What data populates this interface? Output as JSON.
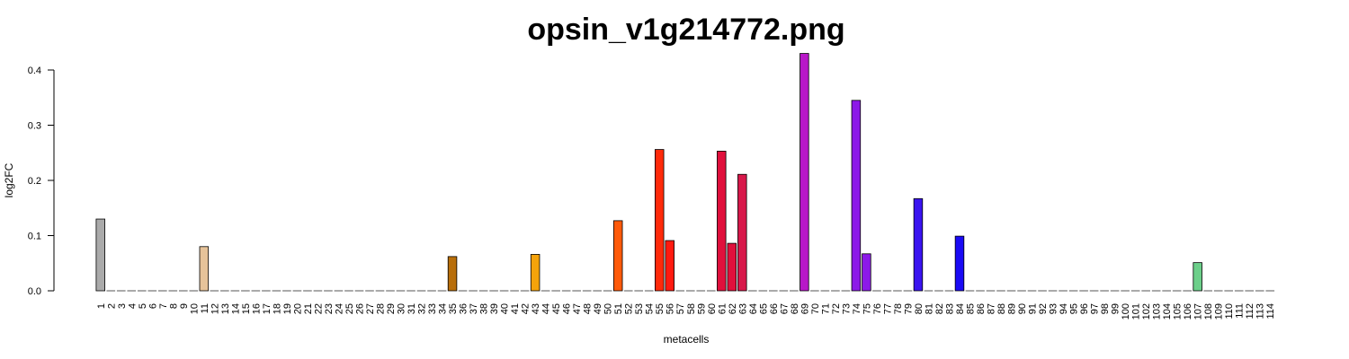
{
  "chart_data": {
    "type": "bar",
    "title": "opsin_v1g214772.png",
    "xlabel": "metacells",
    "ylabel": "log2FC",
    "ylim": [
      0,
      0.43
    ],
    "yticks": [
      "0.0",
      "0.1",
      "0.2",
      "0.3",
      "0.4"
    ],
    "ytick_values": [
      0,
      0.1,
      0.2,
      0.3,
      0.4
    ],
    "categories": [
      "1",
      "2",
      "3",
      "4",
      "5",
      "6",
      "7",
      "8",
      "9",
      "10",
      "11",
      "12",
      "13",
      "14",
      "15",
      "16",
      "17",
      "18",
      "19",
      "20",
      "21",
      "22",
      "23",
      "24",
      "25",
      "26",
      "27",
      "28",
      "29",
      "30",
      "31",
      "32",
      "33",
      "34",
      "35",
      "36",
      "37",
      "38",
      "39",
      "40",
      "41",
      "42",
      "43",
      "44",
      "45",
      "46",
      "47",
      "48",
      "49",
      "50",
      "51",
      "52",
      "53",
      "54",
      "55",
      "56",
      "57",
      "58",
      "59",
      "60",
      "61",
      "62",
      "63",
      "64",
      "65",
      "66",
      "67",
      "68",
      "69",
      "70",
      "71",
      "72",
      "73",
      "74",
      "75",
      "76",
      "77",
      "78",
      "79",
      "80",
      "81",
      "82",
      "83",
      "84",
      "85",
      "86",
      "87",
      "88",
      "89",
      "90",
      "91",
      "92",
      "93",
      "94",
      "95",
      "96",
      "97",
      "98",
      "99",
      "100",
      "101",
      "102",
      "103",
      "104",
      "105",
      "106",
      "107",
      "108",
      "109",
      "110",
      "111",
      "112",
      "113",
      "114"
    ],
    "values": [
      0.13,
      0,
      0,
      0,
      0,
      0,
      0,
      0,
      0,
      0,
      0.08,
      0,
      0,
      0,
      0,
      0,
      0,
      0,
      0,
      0,
      0,
      0,
      0,
      0,
      0,
      0,
      0,
      0,
      0,
      0,
      0,
      0,
      0,
      0,
      0.062,
      0,
      0,
      0,
      0,
      0,
      0,
      0,
      0.066,
      0,
      0,
      0,
      0,
      0,
      0,
      0,
      0.127,
      0,
      0,
      0,
      0.256,
      0.091,
      0,
      0,
      0,
      0,
      0.253,
      0.086,
      0.211,
      0,
      0,
      0,
      0,
      0,
      0.43,
      0,
      0,
      0,
      0,
      0.345,
      0.067,
      0,
      0,
      0,
      0,
      0.167,
      0,
      0,
      0,
      0.099,
      0,
      0,
      0,
      0,
      0,
      0,
      0,
      0,
      0,
      0,
      0,
      0,
      0,
      0,
      0,
      0,
      0,
      0,
      0,
      0,
      0,
      0,
      0.051,
      0,
      0,
      0,
      0,
      0,
      0,
      0
    ],
    "bar_colors": {
      "1": "#aaaaaa",
      "11": "#e6c39a",
      "35": "#b86e0a",
      "43": "#f5a30a",
      "51": "#ff5a0a",
      "55": "#ff2a0a",
      "56": "#ff1a10",
      "61": "#e0103c",
      "62": "#e0103c",
      "63": "#d8184a",
      "69": "#b818c8",
      "74": "#8c1ae8",
      "75": "#8c1ae8",
      "80": "#3a14f0",
      "84": "#1a0af5",
      "107": "#6ccf8a"
    },
    "default_color": "#888888",
    "grid": false,
    "legend": "none"
  }
}
